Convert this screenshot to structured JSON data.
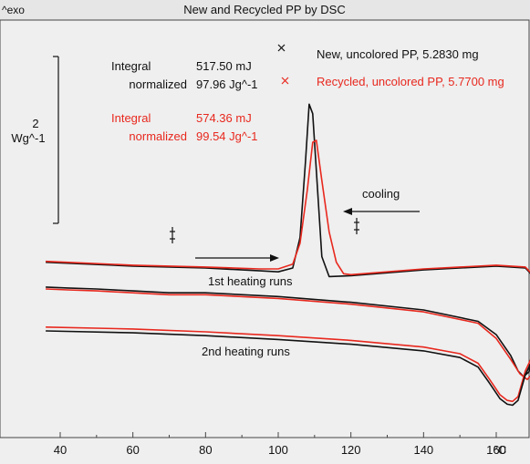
{
  "chart_data": {
    "type": "line",
    "title": "New and Recycled PP by DSC",
    "y_direction_label": "^exo",
    "scale_bar": {
      "value": "2",
      "unit": "Wg^-1"
    },
    "xlabel_unit": "°C",
    "xlim": [
      36,
      178
    ],
    "x_ticks": [
      40,
      60,
      80,
      100,
      120,
      140,
      160
    ],
    "x_tick_labels": [
      "40",
      "60",
      "80",
      "100",
      "120",
      "140",
      "160"
    ],
    "colors": {
      "new": "#111111",
      "recycled": "#e8281e",
      "background": "#efefef"
    },
    "legend": [
      {
        "text": "New, uncolored PP, 5.2830 mg",
        "color": "#111111"
      },
      {
        "text": "Recycled, uncolored PP, 5.7700 mg",
        "color": "#e8281e"
      }
    ],
    "integrals": [
      {
        "label_a": "Integral",
        "label_b": "normalized",
        "value_a": "517.50 mJ",
        "value_b": "97.96 Jg^-1",
        "color": "#111111"
      },
      {
        "label_a": "Integral",
        "label_b": "normalized",
        "value_a": "574.36 mJ",
        "value_b": "99.54 Jg^-1",
        "color": "#e8281e"
      }
    ],
    "annotations": {
      "cooling": "cooling",
      "heating1": "1st heating runs",
      "heating2": "2nd heating runs"
    },
    "series": [
      {
        "group": "cooling",
        "color": "#111111",
        "points": [
          [
            36,
            9.2
          ],
          [
            60,
            9.0
          ],
          [
            80,
            8.9
          ],
          [
            95,
            8.75
          ],
          [
            100,
            8.7
          ],
          [
            104,
            8.9
          ],
          [
            106,
            10.5
          ],
          [
            107.5,
            14.5
          ],
          [
            108.5,
            17.5
          ],
          [
            109.5,
            17.0
          ],
          [
            110.5,
            14.0
          ],
          [
            112,
            9.5
          ],
          [
            114,
            8.45
          ],
          [
            120,
            8.5
          ],
          [
            140,
            8.8
          ],
          [
            160,
            9.0
          ],
          [
            168,
            8.9
          ],
          [
            171,
            8.3
          ],
          [
            173,
            7.4
          ]
        ]
      },
      {
        "group": "cooling",
        "color": "#e8281e",
        "points": [
          [
            36,
            9.25
          ],
          [
            60,
            9.05
          ],
          [
            80,
            8.95
          ],
          [
            95,
            8.85
          ],
          [
            100,
            8.85
          ],
          [
            104,
            9.1
          ],
          [
            106,
            10.2
          ],
          [
            108,
            13.0
          ],
          [
            109.5,
            15.5
          ],
          [
            110.5,
            15.6
          ],
          [
            112,
            13.5
          ],
          [
            114,
            10.8
          ],
          [
            116,
            9.2
          ],
          [
            118,
            8.6
          ],
          [
            120,
            8.55
          ],
          [
            140,
            8.85
          ],
          [
            160,
            9.05
          ],
          [
            168,
            8.95
          ],
          [
            171,
            8.35
          ],
          [
            173,
            7.45
          ]
        ]
      },
      {
        "group": "1st heating",
        "color": "#111111",
        "points": [
          [
            36,
            7.9
          ],
          [
            42,
            7.85
          ],
          [
            50,
            7.8
          ],
          [
            60,
            7.7
          ],
          [
            70,
            7.6
          ],
          [
            80,
            7.6
          ],
          [
            100,
            7.4
          ],
          [
            120,
            7.1
          ],
          [
            140,
            6.7
          ],
          [
            155,
            6.1
          ],
          [
            160,
            5.4
          ],
          [
            164,
            4.3
          ],
          [
            166,
            3.5
          ],
          [
            167.5,
            3.2
          ],
          [
            169,
            3.45
          ],
          [
            171,
            5.0
          ],
          [
            173,
            6.7
          ],
          [
            175,
            7.2
          ]
        ]
      },
      {
        "group": "1st heating",
        "color": "#e8281e",
        "points": [
          [
            36,
            7.8
          ],
          [
            42,
            7.75
          ],
          [
            50,
            7.7
          ],
          [
            60,
            7.6
          ],
          [
            70,
            7.5
          ],
          [
            80,
            7.5
          ],
          [
            100,
            7.3
          ],
          [
            120,
            7.0
          ],
          [
            140,
            6.6
          ],
          [
            155,
            6.0
          ],
          [
            160,
            5.2
          ],
          [
            164,
            4.1
          ],
          [
            166.5,
            3.35
          ],
          [
            168.5,
            3.05
          ],
          [
            170,
            3.35
          ],
          [
            172,
            5.0
          ],
          [
            173.5,
            6.5
          ],
          [
            175,
            7.0
          ]
        ]
      },
      {
        "group": "2nd heating",
        "color": "#e8281e",
        "points": [
          [
            36,
            5.8
          ],
          [
            60,
            5.7
          ],
          [
            80,
            5.55
          ],
          [
            100,
            5.35
          ],
          [
            120,
            5.1
          ],
          [
            140,
            4.75
          ],
          [
            150,
            4.4
          ],
          [
            155,
            3.9
          ],
          [
            158,
            3.1
          ],
          [
            161,
            2.25
          ],
          [
            163,
            1.95
          ],
          [
            164.5,
            1.9
          ],
          [
            166,
            2.15
          ],
          [
            168,
            3.5
          ],
          [
            170,
            4.3
          ],
          [
            172,
            4.6
          ],
          [
            175,
            4.7
          ]
        ]
      },
      {
        "group": "2nd heating",
        "color": "#111111",
        "points": [
          [
            36,
            5.6
          ],
          [
            60,
            5.5
          ],
          [
            80,
            5.35
          ],
          [
            100,
            5.15
          ],
          [
            120,
            4.9
          ],
          [
            140,
            4.55
          ],
          [
            150,
            4.2
          ],
          [
            155,
            3.7
          ],
          [
            158,
            2.9
          ],
          [
            161,
            2.05
          ],
          [
            163,
            1.75
          ],
          [
            164.5,
            1.7
          ],
          [
            166,
            1.95
          ],
          [
            168,
            3.3
          ],
          [
            170,
            4.1
          ],
          [
            172,
            4.4
          ],
          [
            175,
            4.5
          ]
        ]
      }
    ]
  }
}
